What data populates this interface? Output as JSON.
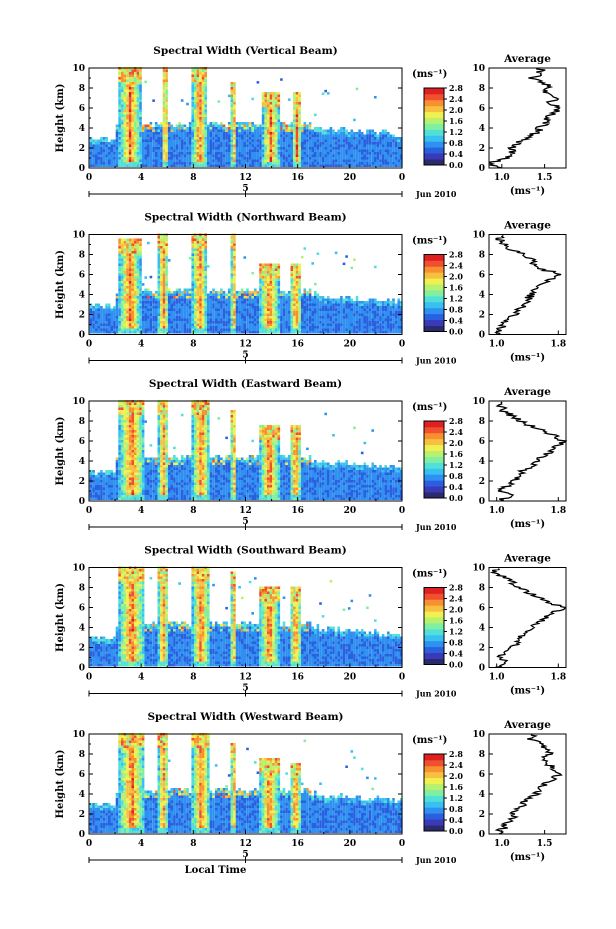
{
  "figure": {
    "xlabel": "Local Time",
    "date_label": "Jun 2010",
    "day_marker": "5",
    "colorbar_unit": "(ms⁻¹)",
    "colorbar_ticks": [
      "0.0",
      "0.4",
      "0.8",
      "1.2",
      "1.6",
      "2.0",
      "2.4",
      "2.8"
    ],
    "colorbar_colors": [
      "#2a2a6e",
      "#3a3ab8",
      "#2a60e0",
      "#2e90f0",
      "#38c0f0",
      "#50e0d8",
      "#80f0a0",
      "#b8f070",
      "#f0f050",
      "#f8c040",
      "#f89030",
      "#f05030",
      "#e02020"
    ],
    "avg_title": "Average",
    "avg_xlabel": "(ms⁻¹)"
  },
  "chart_data": [
    {
      "type": "heatmap",
      "title": "Spectral Width (Vertical Beam)",
      "ylabel": "Height (km)",
      "xlabel": "",
      "x_ticks": [
        "0",
        "4",
        "8",
        "12",
        "16",
        "20",
        "0"
      ],
      "y_ticks": [
        "0",
        "2",
        "4",
        "6",
        "8",
        "10"
      ],
      "xlim": [
        0,
        24
      ],
      "ylim": [
        0,
        10
      ],
      "zlim": [
        0.0,
        2.8
      ],
      "convective_cells_hours": [
        [
          2.2,
          3.9,
          10
        ],
        [
          5.5,
          6.0,
          10
        ],
        [
          7.8,
          9.0,
          10
        ],
        [
          10.8,
          11.2,
          8.5
        ],
        [
          13.2,
          14.5,
          7.5
        ],
        [
          15.5,
          16.2,
          7.5
        ]
      ],
      "average_profile": {
        "x_ticks": [
          "1.0",
          "1.5"
        ],
        "xlim": [
          0.85,
          1.75
        ],
        "height_km": [
          0,
          0.5,
          1,
          1.5,
          2,
          2.5,
          3,
          3.5,
          4,
          4.5,
          5,
          5.5,
          6,
          6.5,
          7,
          7.5,
          8,
          8.5,
          9,
          9.5
        ],
        "width_ms": [
          0.95,
          0.88,
          1.05,
          1.1,
          1.12,
          1.2,
          1.3,
          1.4,
          1.45,
          1.5,
          1.55,
          1.58,
          1.7,
          1.55,
          1.62,
          1.5,
          1.55,
          1.5,
          1.35,
          1.45
        ]
      }
    },
    {
      "type": "heatmap",
      "title": "Spectral Width (Northward Beam)",
      "ylabel": "Height (km)",
      "xlabel": "",
      "x_ticks": [
        "0",
        "4",
        "8",
        "12",
        "16",
        "20",
        "0"
      ],
      "y_ticks": [
        "0",
        "2",
        "4",
        "6",
        "8",
        "10"
      ],
      "xlim": [
        0,
        24
      ],
      "ylim": [
        0,
        10
      ],
      "zlim": [
        0.0,
        2.8
      ],
      "convective_cells_hours": [
        [
          2.2,
          3.9,
          9.5
        ],
        [
          5.2,
          6.0,
          10
        ],
        [
          7.8,
          9.0,
          10
        ],
        [
          10.8,
          11.2,
          10
        ],
        [
          13.0,
          14.5,
          7
        ],
        [
          15.3,
          16.2,
          7
        ]
      ],
      "average_profile": {
        "x_ticks": [
          "1.0",
          "1.8"
        ],
        "xlim": [
          0.9,
          1.9
        ],
        "height_km": [
          0,
          0.5,
          1,
          1.5,
          2,
          2.5,
          3,
          3.5,
          4,
          4.5,
          5,
          5.5,
          6,
          6.5,
          7,
          7.5,
          8,
          8.5,
          9,
          9.5
        ],
        "width_ms": [
          1.0,
          1.05,
          1.1,
          1.15,
          1.25,
          1.3,
          1.35,
          1.4,
          1.45,
          1.5,
          1.6,
          1.7,
          1.85,
          1.6,
          1.5,
          1.45,
          1.35,
          1.2,
          1.1,
          1.05
        ]
      }
    },
    {
      "type": "heatmap",
      "title": "Spectral Width (Eastward Beam)",
      "ylabel": "Height (km)",
      "xlabel": "",
      "x_ticks": [
        "0",
        "4",
        "8",
        "12",
        "16",
        "20",
        "0"
      ],
      "y_ticks": [
        "0",
        "2",
        "4",
        "6",
        "8",
        "10"
      ],
      "xlim": [
        0,
        24
      ],
      "ylim": [
        0,
        10
      ],
      "zlim": [
        0.0,
        2.8
      ],
      "convective_cells_hours": [
        [
          2.2,
          4.2,
          10
        ],
        [
          5.2,
          6.0,
          10
        ],
        [
          7.8,
          9.2,
          10
        ],
        [
          10.8,
          11.2,
          9
        ],
        [
          13.0,
          14.5,
          7.5
        ],
        [
          15.3,
          16.2,
          7.5
        ]
      ],
      "average_profile": {
        "x_ticks": [
          "1.0",
          "1.8"
        ],
        "xlim": [
          0.9,
          1.9
        ],
        "height_km": [
          0,
          0.5,
          1,
          1.5,
          2,
          2.5,
          3,
          3.5,
          4,
          4.5,
          5,
          5.5,
          6,
          6.5,
          7,
          7.5,
          8,
          8.5,
          9,
          9.5
        ],
        "width_ms": [
          1.0,
          1.2,
          1.05,
          1.15,
          1.2,
          1.3,
          1.35,
          1.45,
          1.5,
          1.6,
          1.7,
          1.8,
          1.85,
          1.75,
          1.6,
          1.45,
          1.3,
          1.2,
          1.1,
          1.05
        ]
      }
    },
    {
      "type": "heatmap",
      "title": "Spectral Width (Southward Beam)",
      "ylabel": "Height (km)",
      "xlabel": "",
      "x_ticks": [
        "0",
        "4",
        "8",
        "12",
        "16",
        "20",
        "0"
      ],
      "y_ticks": [
        "0",
        "2",
        "4",
        "6",
        "8",
        "10"
      ],
      "xlim": [
        0,
        24
      ],
      "ylim": [
        0,
        10
      ],
      "zlim": [
        0.0,
        2.8
      ],
      "convective_cells_hours": [
        [
          2.2,
          4.2,
          10
        ],
        [
          5.2,
          6.0,
          10
        ],
        [
          7.8,
          9.2,
          10
        ],
        [
          10.8,
          11.2,
          9.5
        ],
        [
          13.0,
          14.5,
          8
        ],
        [
          15.3,
          16.2,
          8
        ]
      ],
      "average_profile": {
        "x_ticks": [
          "1.0",
          "1.8"
        ],
        "xlim": [
          0.9,
          1.9
        ],
        "height_km": [
          0,
          0.5,
          1,
          1.5,
          2,
          2.5,
          3,
          3.5,
          4,
          4.5,
          5,
          5.5,
          6,
          6.5,
          7,
          7.5,
          8,
          8.5,
          9,
          9.5
        ],
        "width_ms": [
          1.0,
          1.15,
          1.05,
          1.1,
          1.2,
          1.25,
          1.3,
          1.35,
          1.45,
          1.55,
          1.65,
          1.75,
          1.85,
          1.7,
          1.55,
          1.4,
          1.3,
          1.2,
          1.1,
          1.0
        ]
      }
    },
    {
      "type": "heatmap",
      "title": "Spectral Width (Westward Beam)",
      "ylabel": "Height (km)",
      "xlabel": "Local Time",
      "x_ticks": [
        "0",
        "4",
        "8",
        "12",
        "16",
        "20",
        "0"
      ],
      "y_ticks": [
        "0",
        "2",
        "4",
        "6",
        "8",
        "10"
      ],
      "xlim": [
        0,
        24
      ],
      "ylim": [
        0,
        10
      ],
      "zlim": [
        0.0,
        2.8
      ],
      "convective_cells_hours": [
        [
          2.2,
          4.2,
          10
        ],
        [
          5.2,
          6.0,
          10
        ],
        [
          7.8,
          9.2,
          10
        ],
        [
          10.8,
          11.2,
          9
        ],
        [
          13.0,
          14.5,
          7.5
        ],
        [
          15.3,
          16.2,
          7
        ]
      ],
      "average_profile": {
        "x_ticks": [
          "1.0",
          "1.5"
        ],
        "xlim": [
          0.85,
          1.75
        ],
        "height_km": [
          0,
          0.5,
          1,
          1.5,
          2,
          2.5,
          3,
          3.5,
          4,
          4.5,
          5,
          5.5,
          6,
          6.5,
          7,
          7.5,
          8,
          8.5,
          9,
          9.5
        ],
        "width_ms": [
          0.95,
          1.0,
          1.05,
          1.1,
          1.15,
          1.2,
          1.25,
          1.3,
          1.4,
          1.45,
          1.5,
          1.6,
          1.7,
          1.6,
          1.55,
          1.5,
          1.55,
          1.5,
          1.45,
          1.35
        ]
      }
    }
  ]
}
